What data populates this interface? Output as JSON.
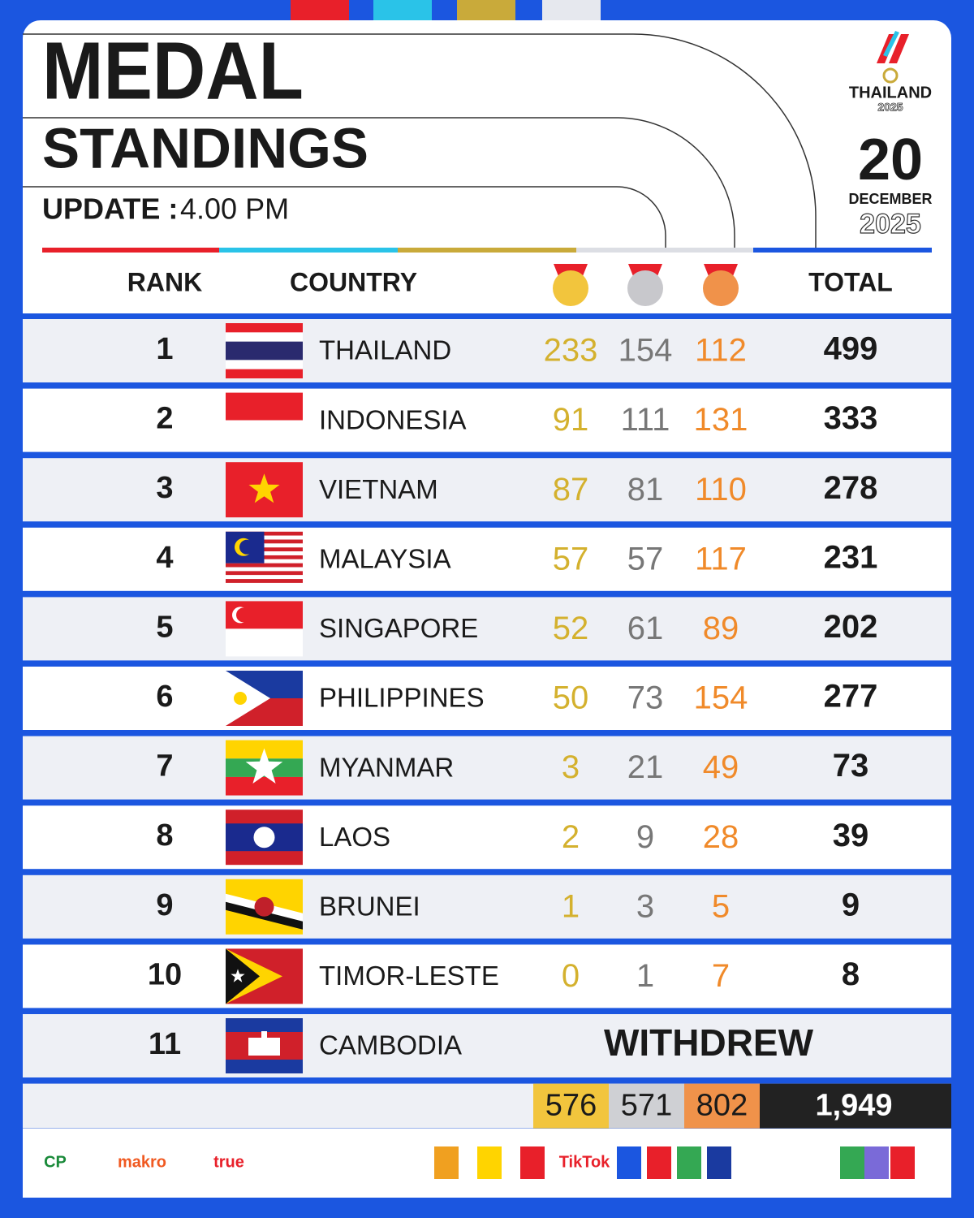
{
  "header": {
    "title_line1": "MEDAL",
    "title_line2": "STANDINGS",
    "update_label": "UPDATE :",
    "update_time": "4.00 PM",
    "event": "THAILAND",
    "event_year": "2025",
    "day": "20",
    "month": "DECEMBER",
    "year": "2025"
  },
  "table": {
    "columns": {
      "rank": "RANK",
      "country": "COUNTRY",
      "total": "TOTAL"
    },
    "rows": [
      {
        "rank": "1",
        "country": "THAILAND",
        "gold": "233",
        "silver": "154",
        "bronze": "112",
        "total": "499"
      },
      {
        "rank": "2",
        "country": "INDONESIA",
        "gold": "91",
        "silver": "111",
        "bronze": "131",
        "total": "333"
      },
      {
        "rank": "3",
        "country": "VIETNAM",
        "gold": "87",
        "silver": "81",
        "bronze": "110",
        "total": "278"
      },
      {
        "rank": "4",
        "country": "MALAYSIA",
        "gold": "57",
        "silver": "57",
        "bronze": "117",
        "total": "231"
      },
      {
        "rank": "5",
        "country": "SINGAPORE",
        "gold": "52",
        "silver": "61",
        "bronze": "89",
        "total": "202"
      },
      {
        "rank": "6",
        "country": "PHILIPPINES",
        "gold": "50",
        "silver": "73",
        "bronze": "154",
        "total": "277"
      },
      {
        "rank": "7",
        "country": "MYANMAR",
        "gold": "3",
        "silver": "21",
        "bronze": "49",
        "total": "73"
      },
      {
        "rank": "8",
        "country": "LAOS",
        "gold": "2",
        "silver": "9",
        "bronze": "28",
        "total": "39"
      },
      {
        "rank": "9",
        "country": "BRUNEI",
        "gold": "1",
        "silver": "3",
        "bronze": "5",
        "total": "9"
      },
      {
        "rank": "10",
        "country": "TIMOR-LESTE",
        "gold": "0",
        "silver": "1",
        "bronze": "7",
        "total": "8"
      },
      {
        "rank": "11",
        "country": "CAMBODIA",
        "status": "WITHDREW"
      }
    ],
    "totals": {
      "gold": "576",
      "silver": "571",
      "bronze": "802",
      "total": "1,949"
    }
  },
  "sponsors": [
    "CP",
    "makro",
    "true",
    "TikTok"
  ]
}
